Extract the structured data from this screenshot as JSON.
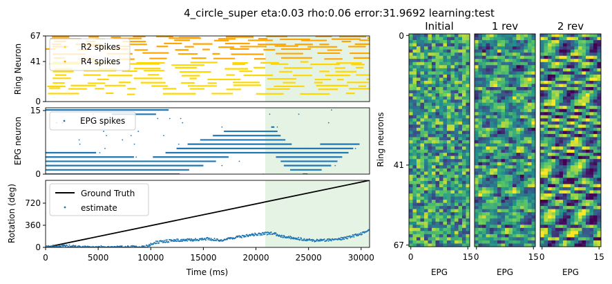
{
  "figure": {
    "suptitle": "4_circle_super eta:0.03 rho:0.06 error:31.9692 learning:test"
  },
  "colors": {
    "r2": "#ffd700",
    "r4": "#ffa500",
    "epg": "#1f77b4",
    "truth": "#000000",
    "estimate": "#1f77b4",
    "test_region": "#2ca02c"
  },
  "chart_data": [
    {
      "id": "ring",
      "type": "scatter",
      "ylabel": "Ring Neuron",
      "ylim": [
        0,
        67
      ],
      "xlim": [
        0,
        30800
      ],
      "yticks": [
        "0",
        "41",
        "67"
      ],
      "test_region": [
        20800,
        30800
      ],
      "legend": {
        "placement": "top-left",
        "entries": [
          "R2 spikes",
          "R4 spikes"
        ]
      },
      "series": [
        {
          "name": "R2 spikes",
          "rows": [
            8,
            13,
            16,
            19,
            23,
            27,
            31,
            34,
            38,
            40
          ],
          "color_key": "r2"
        },
        {
          "name": "R4 spikes",
          "rows": [
            44,
            49,
            53,
            56,
            59,
            62,
            64,
            66
          ],
          "color_key": "r4"
        }
      ]
    },
    {
      "id": "epg",
      "type": "scatter",
      "ylabel": "EPG neuron",
      "ylim": [
        0,
        15.5
      ],
      "xlim": [
        0,
        30800
      ],
      "yticks": [
        "0",
        "15"
      ],
      "test_region": [
        20800,
        30800
      ],
      "legend": {
        "placement": "top-left",
        "entries": [
          "EPG spikes"
        ]
      },
      "bump_x": [
        0,
        1500,
        3000,
        4500,
        6500,
        8000,
        9500,
        11000,
        12500,
        14000,
        15500,
        17000,
        18500,
        19500,
        20800,
        21600,
        22600,
        23600,
        24600,
        25600,
        26600,
        27600,
        28600,
        29600,
        30800
      ],
      "bump_y": [
        2,
        2,
        2,
        2,
        1,
        1,
        0.5,
        1.5,
        3,
        4.5,
        5.5,
        7,
        7.5,
        7.5,
        7.5,
        8,
        5,
        3.5,
        3,
        3.5,
        4.5,
        6,
        8,
        10,
        11
      ]
    },
    {
      "id": "rotation",
      "type": "line",
      "ylabel": "Rotation (deg)",
      "xlabel": "Time (ms)",
      "xlim": [
        0,
        30800
      ],
      "ylim": [
        0,
        1080
      ],
      "xticks": [
        "0",
        "5000",
        "10000",
        "15000",
        "20000",
        "25000",
        "30000"
      ],
      "yticks": [
        "0",
        "360",
        "720"
      ],
      "test_region": [
        20800,
        30800
      ],
      "legend": {
        "placement": "top-left",
        "entries": [
          "Ground Truth",
          "estimate"
        ]
      },
      "series": [
        {
          "name": "Ground Truth",
          "x": [
            0,
            30800
          ],
          "y": [
            0,
            1080
          ],
          "color_key": "truth"
        },
        {
          "name": "estimate",
          "x": [
            0,
            2000,
            4000,
            6000,
            8000,
            9500,
            10500,
            12000,
            14000,
            15500,
            16500,
            18000,
            20000,
            21500,
            22500,
            24000,
            25500,
            27000,
            28500,
            30000,
            30800
          ],
          "y": [
            10,
            20,
            0,
            5,
            5,
            10,
            80,
            110,
            120,
            140,
            110,
            160,
            210,
            230,
            180,
            140,
            110,
            120,
            150,
            220,
            280
          ],
          "color_key": "estimate"
        }
      ]
    },
    {
      "id": "w-initial",
      "type": "heatmap",
      "title": "Initial",
      "xlabel": "EPG",
      "ylabel": "Ring neurons",
      "xticks": [
        "0",
        "15"
      ],
      "yticks": [
        "0",
        "41",
        "67"
      ],
      "rows": 68,
      "cols": 16,
      "seed": 11,
      "structure": 0
    },
    {
      "id": "w-1rev",
      "type": "heatmap",
      "title": "1 rev",
      "xlabel": "EPG",
      "xticks": [
        "0",
        "15"
      ],
      "rows": 68,
      "cols": 16,
      "seed": 23,
      "structure": 0.55
    },
    {
      "id": "w-2rev",
      "type": "heatmap",
      "title": "2 rev",
      "xlabel": "EPG",
      "xticks": [
        "0",
        "15"
      ],
      "rows": 68,
      "cols": 16,
      "seed": 37,
      "structure": 0.9
    }
  ]
}
